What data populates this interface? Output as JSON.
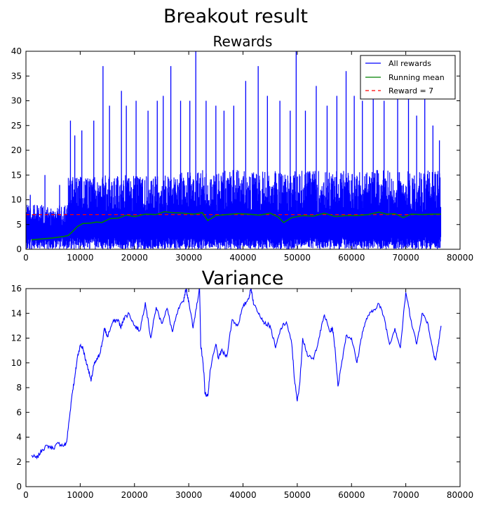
{
  "figure_title": "Breakout result",
  "chart_data": [
    {
      "type": "line",
      "title": "Rewards",
      "xlim": [
        0,
        80000
      ],
      "ylim": [
        0,
        40
      ],
      "xticks": [
        0,
        10000,
        20000,
        30000,
        40000,
        50000,
        60000,
        70000,
        80000
      ],
      "yticks": [
        0,
        5,
        10,
        15,
        20,
        25,
        30,
        35,
        40
      ],
      "legend_position": "top-right",
      "series": [
        {
          "name": "All rewards",
          "color": "#0000ff",
          "style": "solid",
          "segments": [
            {
              "x_start": 0,
              "x_end": 7800,
              "low": 0,
              "high": 9,
              "band_width": 1.2
            },
            {
              "x_start": 7800,
              "x_end": 26000,
              "low": 0,
              "high": 15,
              "band_width": 1.6
            },
            {
              "x_start": 26000,
              "x_end": 76500,
              "low": 0,
              "high": 16,
              "band_width": 1.6
            }
          ],
          "spikes": [
            {
              "x": 800,
              "y": 11
            },
            {
              "x": 3500,
              "y": 15
            },
            {
              "x": 6200,
              "y": 13
            },
            {
              "x": 8200,
              "y": 26
            },
            {
              "x": 9000,
              "y": 23
            },
            {
              "x": 10300,
              "y": 24
            },
            {
              "x": 12500,
              "y": 26
            },
            {
              "x": 14200,
              "y": 37
            },
            {
              "x": 15400,
              "y": 29
            },
            {
              "x": 17600,
              "y": 32
            },
            {
              "x": 18500,
              "y": 29
            },
            {
              "x": 20300,
              "y": 30
            },
            {
              "x": 22500,
              "y": 28
            },
            {
              "x": 24200,
              "y": 30
            },
            {
              "x": 25300,
              "y": 31
            },
            {
              "x": 26700,
              "y": 37
            },
            {
              "x": 28500,
              "y": 30
            },
            {
              "x": 30200,
              "y": 30
            },
            {
              "x": 31300,
              "y": 40
            },
            {
              "x": 33200,
              "y": 30
            },
            {
              "x": 35000,
              "y": 29
            },
            {
              "x": 36500,
              "y": 28
            },
            {
              "x": 38300,
              "y": 29
            },
            {
              "x": 40500,
              "y": 34
            },
            {
              "x": 42800,
              "y": 37
            },
            {
              "x": 44500,
              "y": 31
            },
            {
              "x": 46800,
              "y": 30
            },
            {
              "x": 48700,
              "y": 28
            },
            {
              "x": 49800,
              "y": 40
            },
            {
              "x": 51500,
              "y": 28
            },
            {
              "x": 53500,
              "y": 33
            },
            {
              "x": 55500,
              "y": 29
            },
            {
              "x": 57300,
              "y": 31
            },
            {
              "x": 59000,
              "y": 36
            },
            {
              "x": 60500,
              "y": 31
            },
            {
              "x": 62000,
              "y": 30
            },
            {
              "x": 64000,
              "y": 35
            },
            {
              "x": 66000,
              "y": 30
            },
            {
              "x": 68500,
              "y": 31
            },
            {
              "x": 70500,
              "y": 31
            },
            {
              "x": 72000,
              "y": 27
            },
            {
              "x": 73500,
              "y": 34
            },
            {
              "x": 75000,
              "y": 25
            },
            {
              "x": 76200,
              "y": 22
            }
          ]
        },
        {
          "name": "Running mean",
          "color": "#008000",
          "style": "solid",
          "x": [
            1000,
            3000,
            5000,
            7000,
            7800,
            8500,
            9500,
            10500,
            12000,
            13000,
            14000,
            15500,
            17000,
            18500,
            20000,
            22000,
            24000,
            25500,
            27000,
            29000,
            31000,
            32500,
            33500,
            35000,
            37000,
            39000,
            41000,
            43000,
            45000,
            46500,
            47500,
            49000,
            51000,
            53000,
            55000,
            57000,
            59000,
            61000,
            63000,
            65000,
            66500,
            68000,
            69500,
            71000,
            73000,
            75000,
            76500
          ],
          "y": [
            1.9,
            2.1,
            2.3,
            2.6,
            2.8,
            3.5,
            4.6,
            5.2,
            5.3,
            5.5,
            5.4,
            6.2,
            6.3,
            6.9,
            6.6,
            7.1,
            7.0,
            7.6,
            7.4,
            7.3,
            7.1,
            7.4,
            5.8,
            6.8,
            7.0,
            7.2,
            7.1,
            6.9,
            7.3,
            6.5,
            5.4,
            6.4,
            6.8,
            6.7,
            7.3,
            6.6,
            6.8,
            6.8,
            7.0,
            7.5,
            7.1,
            7.2,
            6.4,
            7.1,
            7.0,
            7.1,
            7.1
          ]
        },
        {
          "name": "Reward = 7",
          "color": "#ff0000",
          "style": "dashed",
          "x": [
            0,
            76500
          ],
          "y": [
            7,
            7
          ]
        }
      ]
    },
    {
      "type": "line",
      "title": "Variance",
      "xlim": [
        0,
        80000
      ],
      "ylim": [
        0,
        16
      ],
      "xticks": [
        0,
        10000,
        20000,
        30000,
        40000,
        50000,
        60000,
        70000,
        80000
      ],
      "yticks": [
        0,
        2,
        4,
        6,
        8,
        10,
        12,
        14,
        16
      ],
      "series": [
        {
          "color": "#0000ff",
          "x": [
            1000,
            2000,
            3000,
            4000,
            5000,
            6000,
            7000,
            7500,
            8000,
            8500,
            9000,
            9500,
            10000,
            10500,
            11000,
            11500,
            12000,
            12500,
            13000,
            13500,
            14000,
            14500,
            15000,
            16000,
            17000,
            17500,
            18000,
            19000,
            20000,
            21000,
            22000,
            23000,
            24000,
            25000,
            26000,
            27000,
            28000,
            29000,
            29500,
            30000,
            30800,
            31500,
            32000,
            32200,
            32500,
            32800,
            33000,
            33500,
            34000,
            35000,
            35500,
            36000,
            37000,
            38000,
            39000,
            40000,
            41000,
            41500,
            42000,
            43000,
            44000,
            45000,
            46000,
            47000,
            48000,
            49000,
            49500,
            50000,
            50500,
            51000,
            52000,
            53000,
            54000,
            55000,
            56000,
            56500,
            57000,
            57500,
            58000,
            59000,
            60000,
            61000,
            62000,
            63000,
            64000,
            65000,
            66000,
            67000,
            68000,
            69000,
            70000,
            71000,
            72000,
            73000,
            74000,
            75000,
            75500,
            76000,
            76500
          ],
          "y": [
            2.5,
            2.3,
            3.0,
            3.3,
            3.1,
            3.5,
            3.3,
            3.6,
            5.5,
            7.5,
            8.8,
            10.5,
            11.4,
            11.2,
            10.2,
            9.5,
            8.5,
            9.8,
            10.2,
            10.6,
            11.5,
            12.8,
            12.1,
            13.3,
            13.5,
            12.8,
            13.6,
            14.0,
            13.0,
            12.6,
            14.9,
            12.0,
            14.5,
            13.2,
            14.4,
            12.5,
            14.2,
            15.0,
            16.0,
            15.0,
            12.8,
            14.8,
            16.0,
            11.5,
            10.5,
            9.2,
            7.5,
            7.3,
            9.5,
            11.5,
            10.3,
            11.0,
            10.5,
            13.5,
            13.0,
            14.5,
            15.2,
            16.0,
            14.7,
            14.0,
            13.2,
            13.0,
            11.2,
            12.8,
            13.3,
            11.5,
            8.6,
            6.9,
            8.5,
            12.0,
            10.5,
            10.3,
            12.0,
            13.9,
            12.5,
            12.8,
            11.0,
            8.1,
            9.5,
            12.2,
            12.0,
            10.0,
            12.5,
            13.8,
            14.2,
            14.8,
            13.7,
            11.5,
            12.8,
            11.2,
            15.7,
            13.4,
            11.5,
            14.0,
            13.3,
            11.0,
            10.2,
            11.5,
            13.0
          ]
        }
      ]
    }
  ]
}
